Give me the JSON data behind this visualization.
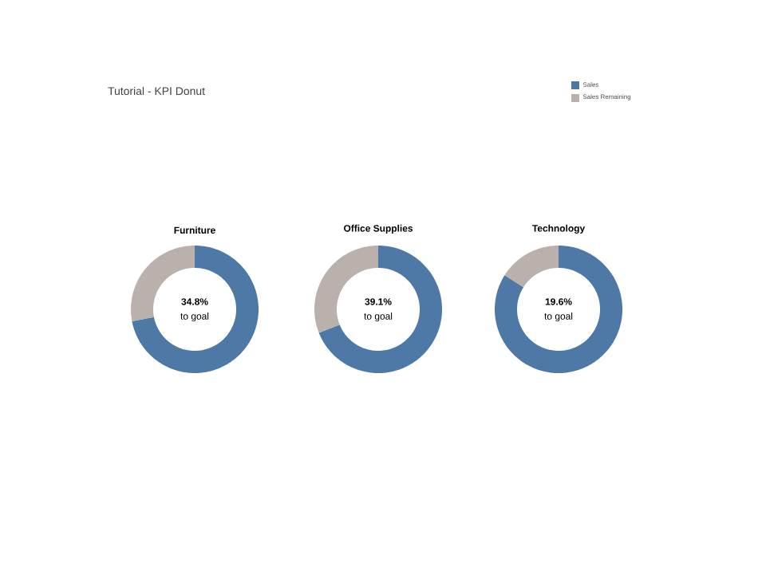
{
  "chart_data": [
    {
      "type": "donut",
      "title": "Furniture",
      "categories": [
        "Sales",
        "Sales Remaining"
      ],
      "values": [
        72,
        28
      ],
      "colors": [
        "#4e79a7",
        "#bab0ac"
      ],
      "annotations": [
        "Tutorial - KPI Donut",
        "34.8%",
        "to goal"
      ],
      "legend": "top right"
    },
    {
      "type": "donut",
      "title": "Office Supplies",
      "categories": [
        null,
        null
      ],
      "values": [
        69,
        31
      ],
      "colors": [
        "#4e79a7",
        "#bab0ac"
      ],
      "annotations": [
        "39.1%",
        "to goal"
      ]
    },
    {
      "type": "donut",
      "title": "Technology",
      "categories": [
        null,
        null
      ],
      "values": [
        84,
        16
      ],
      "colors": [
        "#4e79a7",
        "#bab0ac"
      ],
      "annotations": [
        "19.6%",
        "to goal"
      ]
    }
  ]
}
